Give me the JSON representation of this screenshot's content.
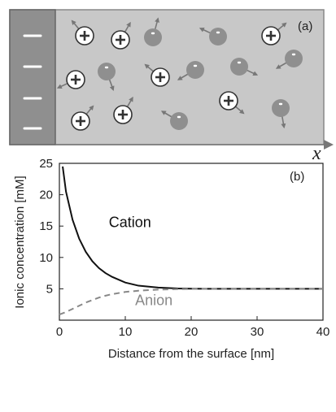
{
  "panel_a": {
    "label": "(a)",
    "axis_symbol": "x",
    "ion_signs": {
      "cation": "+",
      "anion": "-",
      "surface": "-"
    },
    "colors": {
      "panel_fill": "#c8c8c8",
      "wall_fill": "#8f8f8f",
      "cation_fill": "#ffffff",
      "anion_fill": "#8f8f8f",
      "arrow": "#777777"
    }
  },
  "chart_data": {
    "type": "line",
    "panel_label": "(b)",
    "xlabel": "Distance from the surface [nm]",
    "ylabel": "Ionic concentration [mM]",
    "xlim": [
      0,
      40
    ],
    "ylim": [
      0,
      25
    ],
    "x_ticks": [
      0,
      10,
      20,
      30,
      40
    ],
    "y_ticks": [
      5,
      10,
      15,
      20,
      25
    ],
    "grid": false,
    "series": [
      {
        "name": "Cation",
        "style": "solid",
        "color": "#111111",
        "x": [
          0.5,
          1,
          2,
          3,
          4,
          5,
          6,
          7,
          8,
          10,
          12,
          15,
          18,
          20,
          25,
          30,
          35,
          40
        ],
        "y": [
          24.5,
          20.5,
          16.0,
          13.0,
          10.9,
          9.4,
          8.3,
          7.5,
          6.9,
          6.0,
          5.5,
          5.2,
          5.05,
          5.02,
          5.0,
          5.0,
          5.0,
          5.0
        ]
      },
      {
        "name": "Anion",
        "style": "dashed",
        "color": "#888888",
        "x": [
          0,
          1,
          2,
          3,
          4,
          5,
          6,
          7,
          8,
          10,
          12,
          15,
          18,
          20,
          25,
          30,
          35,
          40
        ],
        "y": [
          0.9,
          1.3,
          1.8,
          2.3,
          2.8,
          3.2,
          3.6,
          3.9,
          4.15,
          4.5,
          4.7,
          4.87,
          4.95,
          4.98,
          5.0,
          5.0,
          5.0,
          5.0
        ]
      }
    ],
    "annotations": [
      {
        "text": "Cation",
        "x": 7.5,
        "y": 14.8,
        "color": "#111111"
      },
      {
        "text": "Anion",
        "x": 11.5,
        "y": 2.4,
        "color": "#888888"
      }
    ]
  }
}
